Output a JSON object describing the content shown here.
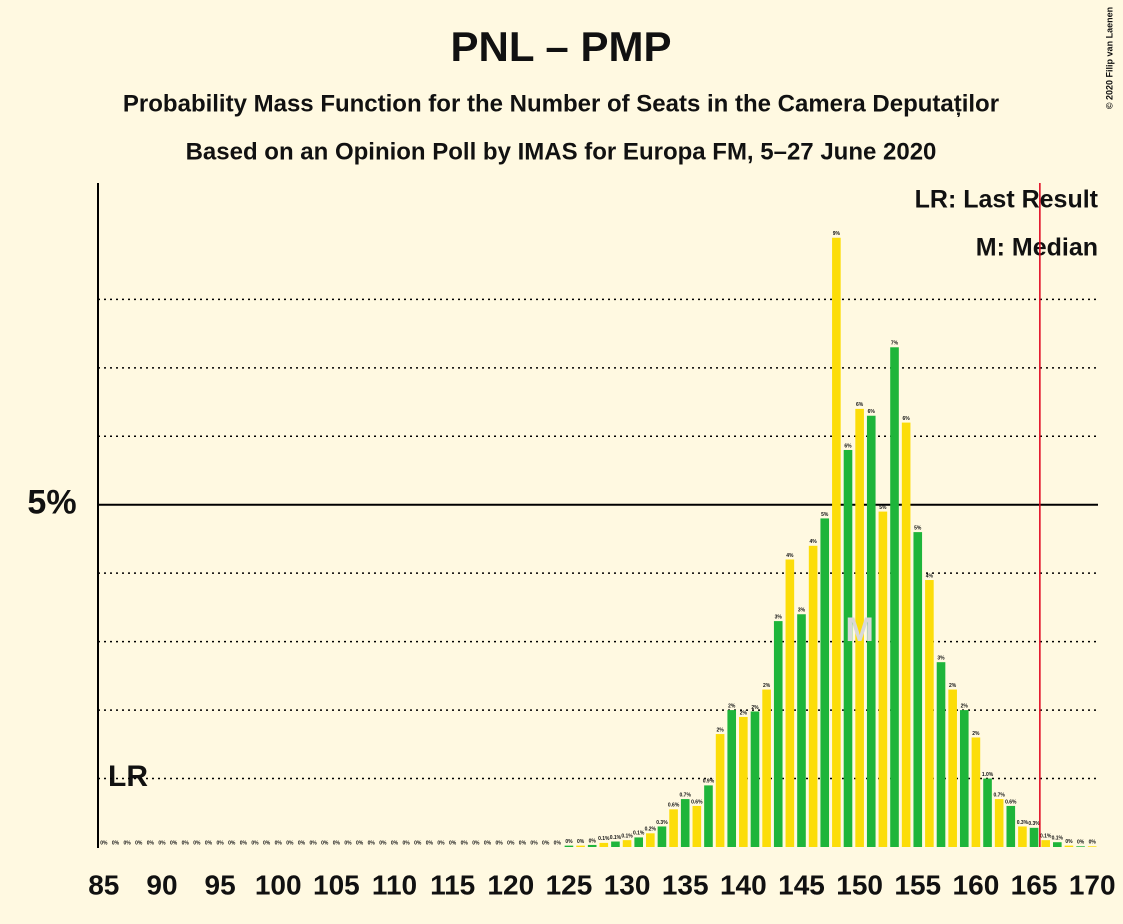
{
  "chart_data": {
    "type": "bar",
    "title": "PNL – PMP",
    "subtitle": "Probability Mass Function for the Number of Seats in the Camera Deputaților",
    "subtitle2": "Based on an Opinion Poll by IMAS for Europa FM, 5–27 June 2020",
    "copyright": "© 2020 Filip van Laenen",
    "legend": [
      "LR: Last Result",
      "M: Median"
    ],
    "last_result_label": "LR",
    "median_label": "M",
    "median": 150,
    "majority_line": 165,
    "colors": [
      "#1eb53a",
      "#fcdd09"
    ],
    "x": [
      85,
      86,
      87,
      88,
      89,
      90,
      91,
      92,
      93,
      94,
      95,
      96,
      97,
      98,
      99,
      100,
      101,
      102,
      103,
      104,
      105,
      106,
      107,
      108,
      109,
      110,
      111,
      112,
      113,
      114,
      115,
      116,
      117,
      118,
      119,
      120,
      121,
      122,
      123,
      124,
      125,
      126,
      127,
      128,
      129,
      130,
      131,
      132,
      133,
      134,
      135,
      136,
      137,
      138,
      139,
      140,
      141,
      142,
      143,
      144,
      145,
      146,
      147,
      148,
      149,
      150,
      151,
      152,
      153,
      154,
      155,
      156,
      157,
      158,
      159,
      160,
      161,
      162,
      163,
      164,
      165,
      166,
      167,
      168,
      169,
      170
    ],
    "values": [
      0,
      0,
      0,
      0,
      0,
      0,
      0,
      0,
      0,
      0,
      0,
      0,
      0,
      0,
      0,
      0,
      0,
      0,
      0,
      0,
      0,
      0,
      0,
      0,
      0,
      0,
      0,
      0,
      0,
      0,
      0,
      0,
      0,
      0,
      0,
      0,
      0,
      0,
      0,
      0,
      0.02,
      0.02,
      0.03,
      0.06,
      0.08,
      0.1,
      0.14,
      0.2,
      0.3,
      0.55,
      0.7,
      0.6,
      0.9,
      1.65,
      2.0,
      1.9,
      1.98,
      2.3,
      3.3,
      4.2,
      3.4,
      4.4,
      4.8,
      8.9,
      5.8,
      6.4,
      6.3,
      4.9,
      7.3,
      6.2,
      4.6,
      3.9,
      2.7,
      2.3,
      2.0,
      1.6,
      1.0,
      0.7,
      0.6,
      0.3,
      0.28,
      0.1,
      0.07,
      0.02,
      0.01,
      0.01
    ],
    "value_labels": [
      "0%",
      "0%",
      "0%",
      "0%",
      "0%",
      "0%",
      "0%",
      "0%",
      "0%",
      "0%",
      "0%",
      "0%",
      "0%",
      "0%",
      "0%",
      "0%",
      "0%",
      "0%",
      "0%",
      "0%",
      "0%",
      "0%",
      "0%",
      "0%",
      "0%",
      "0%",
      "0%",
      "0%",
      "0%",
      "0%",
      "0%",
      "0%",
      "0%",
      "0%",
      "0%",
      "0%",
      "0%",
      "0%",
      "0%",
      "0%",
      "0%",
      "0%",
      "0%",
      "0.1%",
      "0.1%",
      "0.1%",
      "0.1%",
      "0.2%",
      "0.3%",
      "0.6%",
      "0.7%",
      "0.6%",
      "0.9%",
      "2%",
      "2%",
      "2%",
      "2%",
      "2%",
      "3%",
      "4%",
      "3%",
      "4%",
      "5%",
      "9%",
      "6%",
      "6%",
      "6%",
      "5%",
      "7%",
      "6%",
      "5%",
      "4%",
      "3%",
      "2%",
      "2%",
      "2%",
      "1.0%",
      "0.7%",
      "0.6%",
      "0.3%",
      "0.3%",
      "0.1%",
      "0.1%",
      "0%",
      "0%",
      "0%"
    ],
    "xlim": [
      84.5,
      170.5
    ],
    "xticks": [
      85,
      90,
      95,
      100,
      105,
      110,
      115,
      120,
      125,
      130,
      135,
      140,
      145,
      150,
      155,
      160,
      165,
      170
    ],
    "ylim": [
      0,
      9.7
    ],
    "yticks": [
      {
        "value": 5,
        "label": "5%"
      }
    ],
    "dotted_grid": [
      1,
      2,
      3,
      4,
      6,
      7,
      8
    ]
  }
}
